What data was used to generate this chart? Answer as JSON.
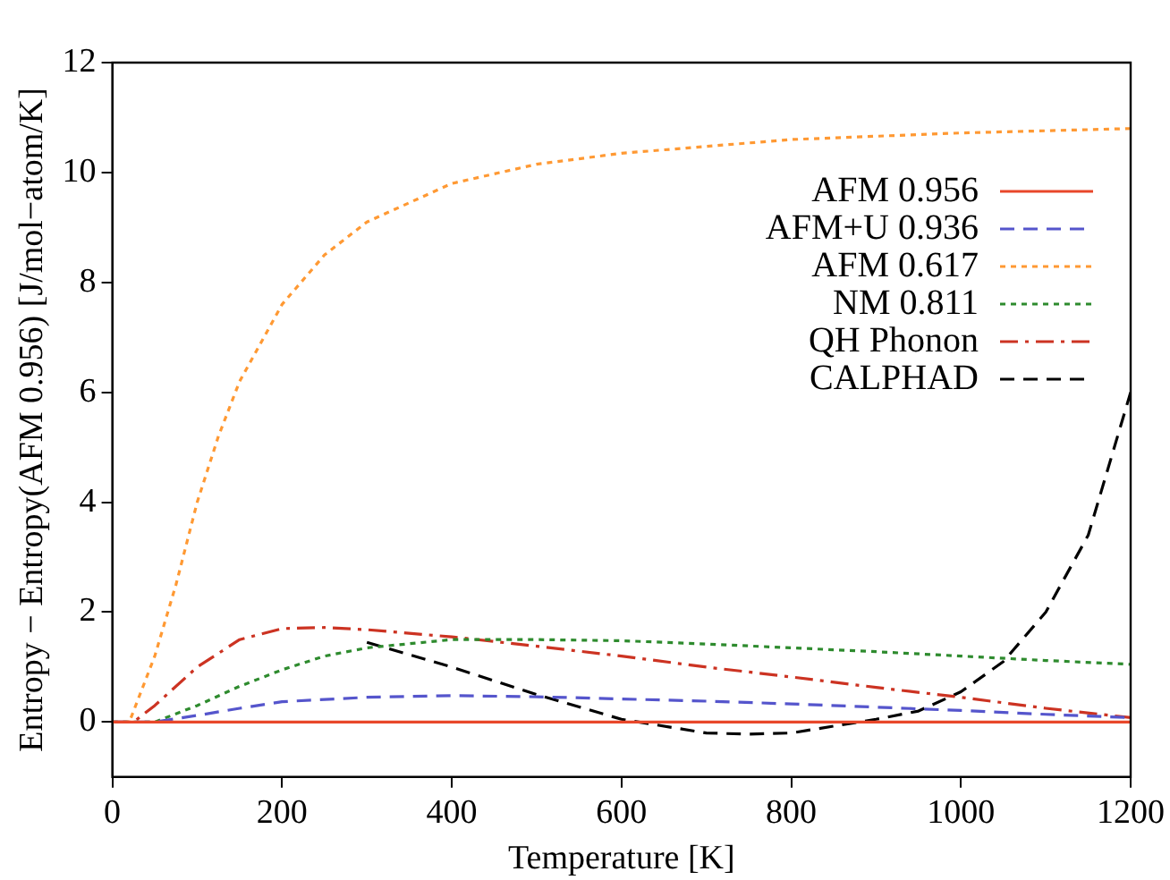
{
  "chart_data": {
    "type": "line",
    "xlabel": "Temperature [K]",
    "ylabel": "Entropy − Entropy(AFM 0.956) [J/mol−atom/K]",
    "xlim": [
      0,
      1200
    ],
    "xticks": [
      0,
      200,
      400,
      600,
      800,
      1000,
      1200
    ],
    "ylim": [
      -1,
      12
    ],
    "yticks": [
      0,
      2,
      4,
      6,
      8,
      10,
      12
    ],
    "grid": false,
    "legend": "top right",
    "marker": "none",
    "series": [
      {
        "name": "AFM 0.956",
        "color": "#e8472a",
        "line_style": "solid",
        "x": [
          0,
          1200
        ],
        "values": [
          0,
          0
        ]
      },
      {
        "name": "AFM+U 0.936",
        "color": "#5555cc",
        "line_style": "dashed",
        "x": [
          0,
          50,
          100,
          150,
          200,
          300,
          400,
          500,
          600,
          700,
          800,
          900,
          1000,
          1100,
          1200
        ],
        "values": [
          0,
          0,
          0.12,
          0.25,
          0.37,
          0.45,
          0.48,
          0.46,
          0.42,
          0.38,
          0.33,
          0.27,
          0.21,
          0.14,
          0.08
        ]
      },
      {
        "name": "AFM 0.617",
        "color": "#ff9933",
        "line_style": "dotted",
        "x": [
          0,
          20,
          50,
          75,
          100,
          125,
          150,
          200,
          250,
          300,
          400,
          500,
          600,
          800,
          1000,
          1200
        ],
        "values": [
          0,
          0,
          1.2,
          2.5,
          4,
          5.2,
          6.2,
          7.6,
          8.5,
          9.1,
          9.8,
          10.15,
          10.35,
          10.6,
          10.72,
          10.8
        ]
      },
      {
        "name": "NM 0.811",
        "color": "#2e8b2e",
        "line_style": "dotted",
        "x": [
          0,
          50,
          100,
          150,
          200,
          250,
          300,
          400,
          500,
          600,
          700,
          800,
          900,
          1000,
          1100,
          1200
        ],
        "values": [
          0,
          0,
          0.3,
          0.65,
          0.95,
          1.2,
          1.35,
          1.5,
          1.5,
          1.48,
          1.42,
          1.35,
          1.28,
          1.2,
          1.12,
          1.05
        ]
      },
      {
        "name": "QH Phonon",
        "color": "#cc3322",
        "line_style": "dashdot",
        "x": [
          0,
          25,
          50,
          100,
          150,
          200,
          250,
          300,
          400,
          500,
          600,
          700,
          800,
          900,
          1000,
          1100,
          1200
        ],
        "values": [
          0,
          0,
          0.3,
          1.0,
          1.5,
          1.7,
          1.72,
          1.68,
          1.55,
          1.38,
          1.2,
          1.0,
          0.82,
          0.63,
          0.45,
          0.25,
          0.08
        ]
      },
      {
        "name": "CALPHAD",
        "color": "#000000",
        "line_style": "dashed",
        "x": [
          300,
          400,
          500,
          600,
          700,
          750,
          800,
          900,
          950,
          1000,
          1050,
          1100,
          1150,
          1200
        ],
        "values": [
          1.45,
          1.0,
          0.5,
          0.05,
          -0.2,
          -0.22,
          -0.2,
          0.05,
          0.2,
          0.55,
          1.1,
          2.0,
          3.4,
          6.0
        ]
      }
    ]
  }
}
